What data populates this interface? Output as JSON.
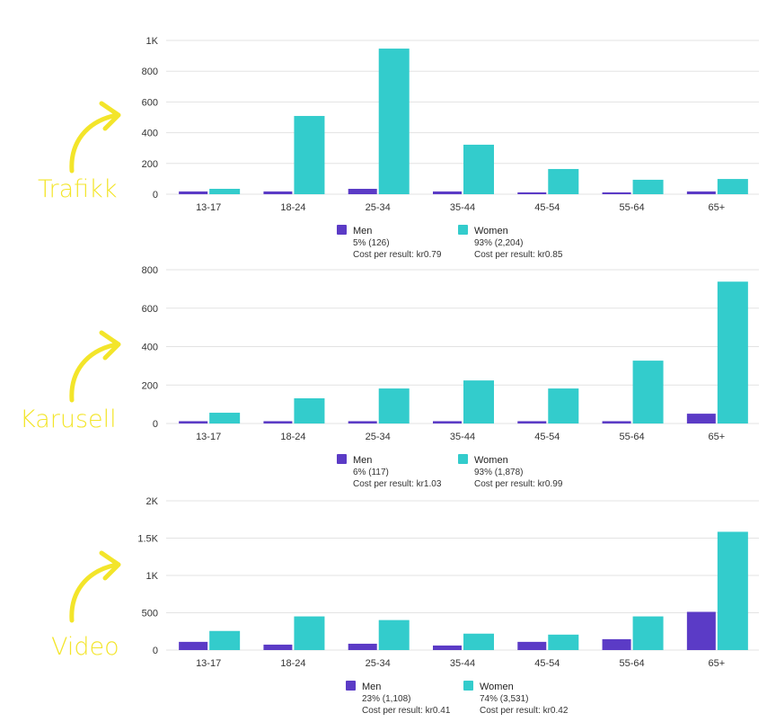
{
  "colors": {
    "men": "#5b3bc6",
    "women": "#33cccc",
    "annotation": "#f3e52a",
    "grid": "#e3e3e3"
  },
  "chart_data": [
    {
      "type": "bar",
      "annotation": "Trafikk",
      "categories": [
        "13-17",
        "18-24",
        "25-34",
        "35-44",
        "45-54",
        "55-64",
        "65+"
      ],
      "ylim": [
        0,
        1000
      ],
      "yticks": [
        0,
        200,
        400,
        600,
        800,
        1000
      ],
      "ytick_labels": [
        "0",
        "200",
        "400",
        "600",
        "800",
        "1K"
      ],
      "grid": true,
      "legend_position": "bottom",
      "series": [
        {
          "name": "Men",
          "values": [
            18,
            18,
            35,
            18,
            12,
            12,
            18
          ],
          "summary": "5% (126)",
          "cost": "Cost per result: kr0.79"
        },
        {
          "name": "Women",
          "values": [
            35,
            509,
            947,
            322,
            164,
            94,
            99
          ],
          "summary": "93% (2,204)",
          "cost": "Cost per result: kr0.85"
        }
      ]
    },
    {
      "type": "bar",
      "annotation": "Karusell",
      "categories": [
        "13-17",
        "18-24",
        "25-34",
        "35-44",
        "45-54",
        "55-64",
        "65+"
      ],
      "ylim": [
        0,
        800
      ],
      "yticks": [
        0,
        200,
        400,
        600,
        800
      ],
      "ytick_labels": [
        "0",
        "200",
        "400",
        "600",
        "800"
      ],
      "grid": true,
      "legend_position": "bottom",
      "series": [
        {
          "name": "Men",
          "values": [
            12,
            12,
            12,
            12,
            12,
            12,
            51
          ],
          "summary": "6% (117)",
          "cost": "Cost per result: kr1.03"
        },
        {
          "name": "Women",
          "values": [
            56,
            131,
            182,
            224,
            182,
            327,
            738
          ],
          "summary": "93% (1,878)",
          "cost": "Cost per result: kr0.99"
        }
      ]
    },
    {
      "type": "bar",
      "annotation": "Video",
      "categories": [
        "13-17",
        "18-24",
        "25-34",
        "35-44",
        "45-54",
        "55-64",
        "65+"
      ],
      "ylim": [
        0,
        2000
      ],
      "yticks": [
        0,
        500,
        1000,
        1500,
        2000
      ],
      "ytick_labels": [
        "0",
        "500",
        "1K",
        "1.5K",
        "2K"
      ],
      "grid": true,
      "legend_position": "bottom",
      "series": [
        {
          "name": "Men",
          "values": [
            110,
            73,
            85,
            61,
            110,
            146,
            512
          ],
          "summary": "23% (1,108)",
          "cost": "Cost per result: kr0.41"
        },
        {
          "name": "Women",
          "values": [
            256,
            451,
            402,
            220,
            207,
            451,
            1585
          ],
          "summary": "74% (3,531)",
          "cost": "Cost per result: kr0.42"
        }
      ]
    }
  ]
}
